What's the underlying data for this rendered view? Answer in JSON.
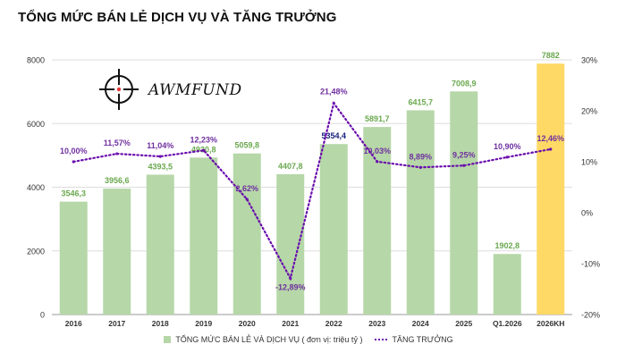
{
  "title": "TỔNG MỨC BÁN LẺ DỊCH VỤ VÀ TĂNG TRƯỞNG",
  "logo": {
    "text": "AWMFUND",
    "icon": "crosshair-icon"
  },
  "legend": {
    "bar_label": "TỔNG MỨC BÁN LẺ VÀ DỊCH VỤ ( đơn vị: triệu tỷ )",
    "line_label": "TĂNG TRƯỞNG"
  },
  "colors": {
    "bar": "#b6d7a8",
    "bar_highlight": "#ffd966",
    "bar_label": "#6aa84f",
    "line": "#6a0dad",
    "line_label": "#7030a0",
    "label_2022": "#1a237e",
    "grid": "#dddddd"
  },
  "chart_data": {
    "type": "bar",
    "categories": [
      "2016",
      "2017",
      "2018",
      "2019",
      "2020",
      "2021",
      "2022",
      "2023",
      "2024",
      "2025",
      "Q1.2026",
      "2026KH"
    ],
    "series": [
      {
        "values": [
          3546.3,
          3956.6,
          4393.5,
          4930.8,
          5059.8,
          4407.8,
          5354.4,
          5891.7,
          6415.7,
          7008.9,
          1902.8,
          7882
        ],
        "labels": [
          "3546,3",
          "3956,6",
          "4393,5",
          "4930,8",
          "5059,8",
          "4407,8",
          "5354,4",
          "5891,7",
          "6415,7",
          "7008,9",
          "1902,8",
          "7882"
        ],
        "axis": "left"
      },
      {
        "type": "line",
        "values": [
          10.0,
          11.57,
          11.04,
          12.23,
          2.62,
          -12.89,
          21.48,
          10.03,
          8.89,
          9.25,
          10.9,
          12.46
        ],
        "labels": [
          "10,00%",
          "11,57%",
          "11,04%",
          "12,23%",
          "2,62%",
          "-12,89%",
          "21,48%",
          "10,03%",
          "8,89%",
          "9,25%",
          "10,90%",
          "12,46%"
        ],
        "axis": "right"
      }
    ],
    "y_left": {
      "lim": [
        0,
        8000
      ],
      "ticks": [
        0,
        2000,
        4000,
        6000,
        8000
      ],
      "tick_labels": [
        "0",
        "2000",
        "4000",
        "6000",
        "8000"
      ]
    },
    "y_right": {
      "lim": [
        -20,
        30
      ],
      "ticks": [
        -20,
        -10,
        0,
        10,
        20,
        30
      ],
      "tick_labels": [
        "-20%",
        "-10%",
        "0%",
        "10%",
        "20%",
        "30%"
      ]
    },
    "grid": true,
    "legend_position": "bottom"
  }
}
